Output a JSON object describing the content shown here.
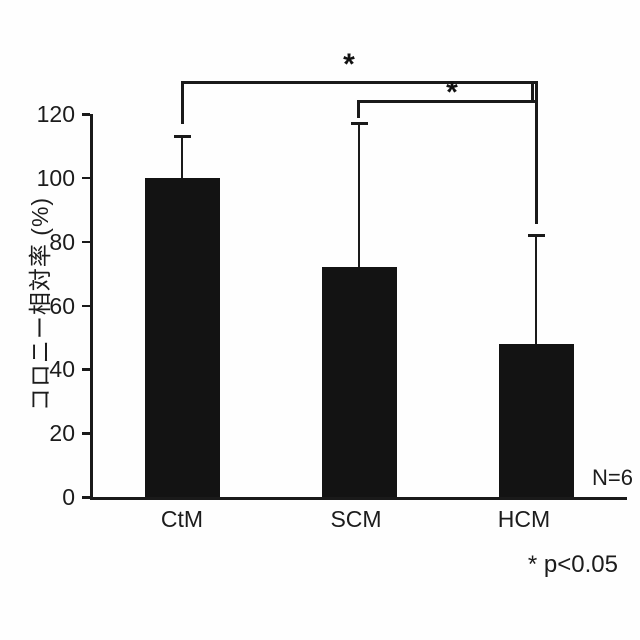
{
  "figure": {
    "background": "#fefefe",
    "ink_color": "#1a1a1a",
    "bar_color": "#131313"
  },
  "chart_data": {
    "type": "bar",
    "title": "",
    "categories": [
      "CtM",
      "SCM",
      "HCM"
    ],
    "values": [
      100,
      72,
      48
    ],
    "errors_upper": [
      13,
      45,
      34
    ],
    "xlabel": "",
    "ylabel": "コロニー相対率 (%)",
    "ylim": [
      0,
      120
    ],
    "yticks": [
      0,
      20,
      40,
      60,
      80,
      100,
      120
    ],
    "grid": false,
    "legend": null,
    "annotations": {
      "sample_size": "N=6",
      "significance_note": "* p<0.05",
      "comparisons": [
        {
          "between": [
            "CtM",
            "HCM"
          ],
          "label": "*"
        },
        {
          "between": [
            "SCM",
            "HCM"
          ],
          "label": "*"
        }
      ]
    }
  }
}
